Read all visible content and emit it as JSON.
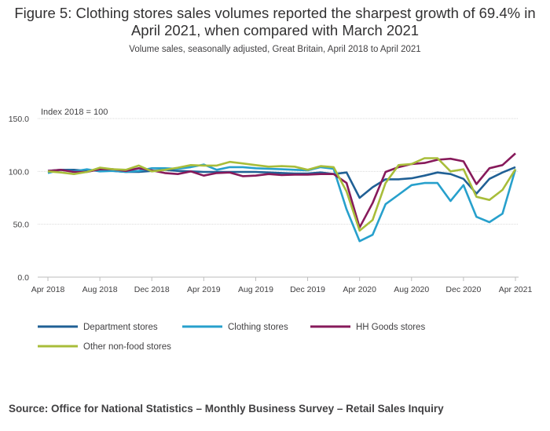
{
  "title": "Figure 5: Clothing stores sales volumes reported the sharpest growth of 69.4% in April 2021, when compared with March 2021",
  "subtitle": "Volume sales, seasonally adjusted, Great Britain, April 2018 to April 2021",
  "source": "Source: Office for National Statistics – Monthly Business Survey – Retail Sales Inquiry",
  "chart_data": {
    "type": "line",
    "ylabel": "Index 2018 = 100",
    "ylim": [
      0,
      150
    ],
    "yticks": [
      0,
      50,
      100,
      150
    ],
    "ytick_labels": [
      "0.0",
      "50.0",
      "100.0",
      "150.0"
    ],
    "x": [
      "Apr 2018",
      "May 2018",
      "Jun 2018",
      "Jul 2018",
      "Aug 2018",
      "Sep 2018",
      "Oct 2018",
      "Nov 2018",
      "Dec 2018",
      "Jan 2019",
      "Feb 2019",
      "Mar 2019",
      "Apr 2019",
      "May 2019",
      "Jun 2019",
      "Jul 2019",
      "Aug 2019",
      "Sep 2019",
      "Oct 2019",
      "Nov 2019",
      "Dec 2019",
      "Jan 2020",
      "Feb 2020",
      "Mar 2020",
      "Apr 2020",
      "May 2020",
      "Jun 2020",
      "Jul 2020",
      "Aug 2020",
      "Sep 2020",
      "Oct 2020",
      "Nov 2020",
      "Dec 2020",
      "Jan 2021",
      "Feb 2021",
      "Mar 2021",
      "Apr 2021"
    ],
    "xtick_labels": [
      "Apr 2018",
      "Aug 2018",
      "Dec 2018",
      "Apr 2019",
      "Aug 2019",
      "Dec 2019",
      "Apr 2020",
      "Aug 2020",
      "Dec 2020",
      "Apr 2021"
    ],
    "grid": "horizontal",
    "legend_position": "bottom",
    "series": [
      {
        "name": "Department stores",
        "color": "#206095",
        "values": [
          100.5,
          101.5,
          101.5,
          100.5,
          101.5,
          100.5,
          99.5,
          99.5,
          100.5,
          101.5,
          100.5,
          100,
          99.5,
          99.5,
          99.5,
          99.5,
          99.5,
          99,
          98.5,
          98,
          98,
          99,
          97.5,
          99,
          75,
          85,
          92.5,
          92.5,
          93.5,
          96,
          99,
          97.5,
          93,
          79,
          93,
          99,
          104
        ]
      },
      {
        "name": "Clothing stores",
        "color": "#27a0cc",
        "values": [
          98.5,
          101.5,
          100,
          102,
          100,
          100.5,
          99.5,
          100.5,
          103,
          103,
          102.5,
          104,
          106.5,
          101.5,
          104,
          104,
          103,
          102.5,
          102,
          101.5,
          101,
          104,
          102.5,
          64,
          34,
          40,
          69,
          78,
          87,
          89,
          89,
          72,
          87,
          57,
          52,
          60,
          102
        ]
      },
      {
        "name": "HH Goods stores",
        "color": "#871a5b",
        "values": [
          100.5,
          101.5,
          99.5,
          99.5,
          102,
          102,
          100.5,
          103,
          101,
          98.5,
          97.5,
          100,
          96,
          98.5,
          99,
          95.5,
          96,
          97.5,
          96.5,
          97,
          97,
          97.5,
          97.5,
          89,
          47,
          70,
          99.5,
          104,
          107,
          108,
          111,
          112,
          109.5,
          88,
          103,
          106,
          117
        ]
      },
      {
        "name": "Other non-food stores",
        "color": "#a8bd3a",
        "values": [
          100,
          99,
          97.5,
          99.5,
          103.5,
          102,
          101.5,
          105.5,
          100,
          101.5,
          103.5,
          106,
          105.5,
          105.5,
          109,
          107.5,
          106,
          104.5,
          105,
          104.5,
          101.5,
          105,
          104,
          81,
          44,
          54,
          89,
          106,
          107,
          112.5,
          112.5,
          100,
          102,
          76,
          73,
          82.5,
          102
        ]
      }
    ]
  }
}
